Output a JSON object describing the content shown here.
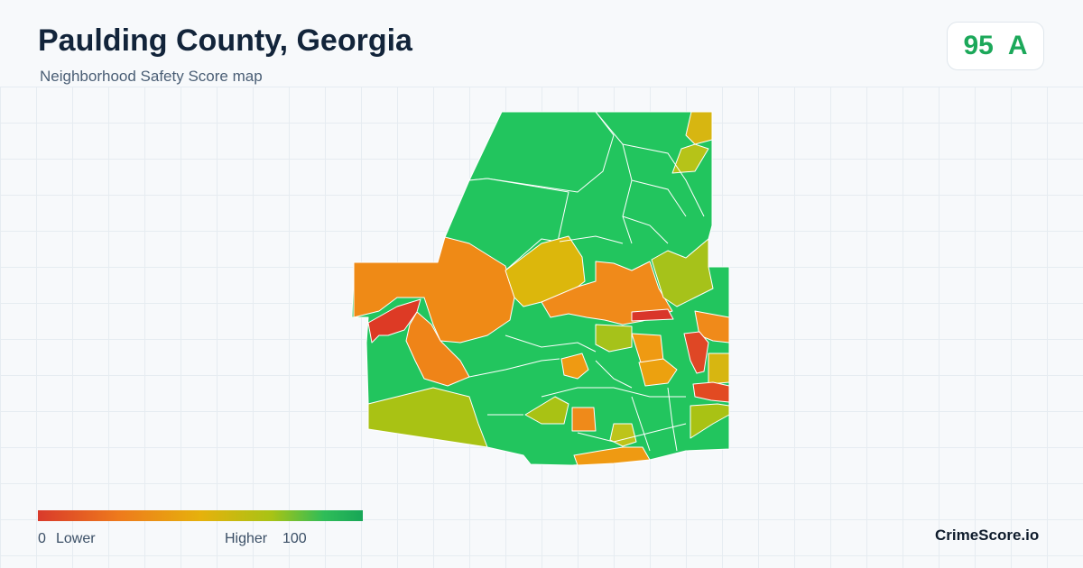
{
  "header": {
    "title": "Paulding County, Georgia",
    "subtitle": "Neighborhood Safety Score map"
  },
  "score": {
    "value": "95",
    "grade": "A",
    "color": "#1ca85a"
  },
  "map": {
    "region": "Paulding County, Georgia",
    "color_scale": [
      "#d93a2b",
      "#ee7a1c",
      "#e6b10c",
      "#a8c315",
      "#22c55e"
    ]
  },
  "legend": {
    "min_value": "0",
    "min_label": "Lower",
    "max_label": "Higher",
    "max_value": "100"
  },
  "brand": {
    "name": "CrimeScore.io"
  }
}
